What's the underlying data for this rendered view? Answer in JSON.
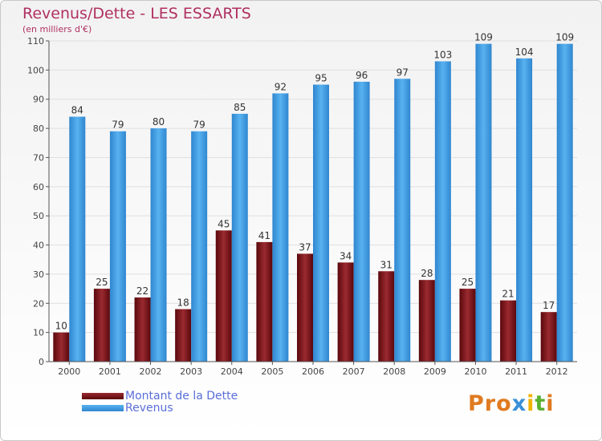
{
  "title": "Revenus/Dette - LES ESSARTS",
  "subtitle": "(en milliers d'€)",
  "colors": {
    "title": "#b03060",
    "legend_text": "#5a6ed8",
    "dette": "#6b0f14",
    "revenus": "#3f9ae0"
  },
  "chart_data": {
    "type": "bar",
    "title": "Revenus/Dette - LES ESSARTS",
    "subtitle": "(en milliers d'€)",
    "xlabel": "",
    "ylabel": "",
    "ylim": [
      0,
      110
    ],
    "yticks": [
      0,
      10,
      20,
      30,
      40,
      50,
      60,
      70,
      80,
      90,
      100,
      110
    ],
    "grid": true,
    "legend_position": "bottom-left",
    "categories": [
      "2000",
      "2001",
      "2002",
      "2003",
      "2004",
      "2005",
      "2006",
      "2007",
      "2008",
      "2009",
      "2010",
      "2011",
      "2012"
    ],
    "series": [
      {
        "name": "Montant de la Dette",
        "color": "#6b0f14",
        "values": [
          10,
          25,
          22,
          18,
          45,
          41,
          37,
          34,
          31,
          28,
          25,
          21,
          17
        ]
      },
      {
        "name": "Revenus",
        "color": "#3f9ae0",
        "values": [
          84,
          79,
          80,
          79,
          85,
          92,
          95,
          96,
          97,
          103,
          109,
          104,
          109
        ]
      }
    ]
  },
  "logo": {
    "text": "Proxiti",
    "letter_colors": [
      "#e07a20",
      "#e07a20",
      "#e07a20",
      "#3a8fd8",
      "#f2b400",
      "#5bb030",
      "#e07a20"
    ]
  }
}
